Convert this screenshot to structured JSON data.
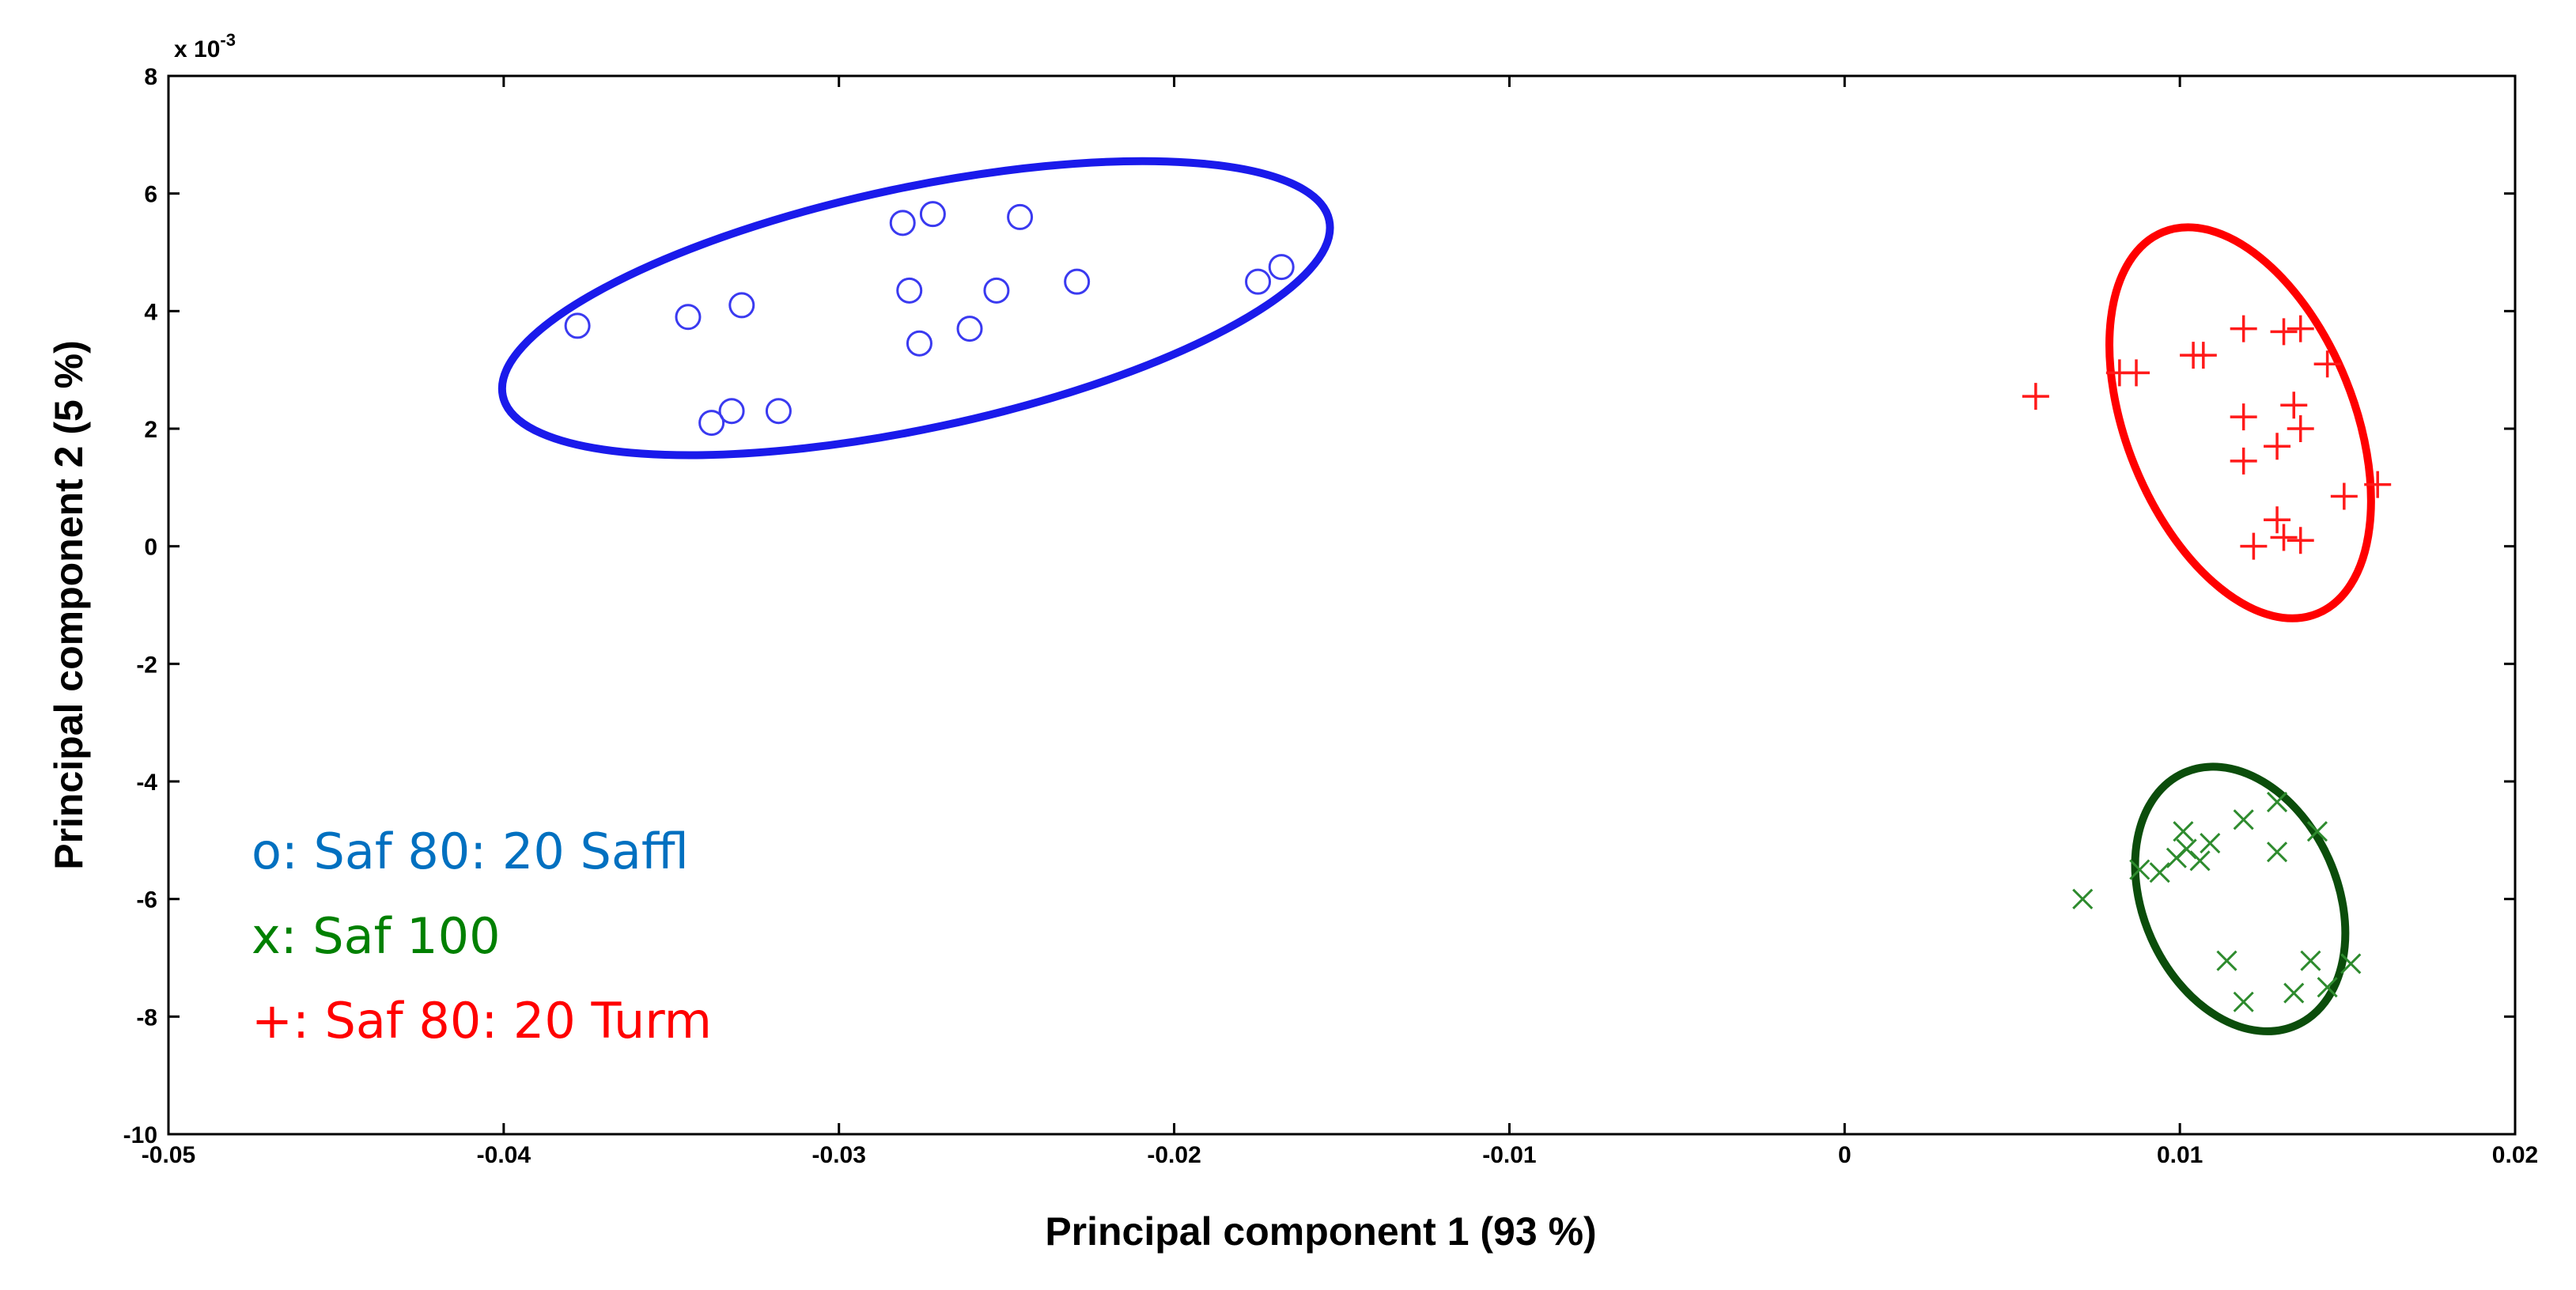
{
  "chart_data": {
    "type": "scatter",
    "xlabel": "Principal component 1 (93 %)",
    "ylabel": "Principal component 2 (5 %)",
    "y_multiplier_label": "x 10",
    "y_multiplier_exponent": "-3",
    "xlim": [
      -0.05,
      0.02
    ],
    "ylim": [
      -10,
      8
    ],
    "grid": false,
    "legend_placement": "bottom-left",
    "x_ticks": [
      {
        "value": -0.05,
        "label": "-0.05"
      },
      {
        "value": -0.04,
        "label": "-0.04"
      },
      {
        "value": -0.03,
        "label": "-0.03"
      },
      {
        "value": -0.02,
        "label": "-0.02"
      },
      {
        "value": -0.01,
        "label": "-0.01"
      },
      {
        "value": 0,
        "label": "0"
      },
      {
        "value": 0.01,
        "label": "0.01"
      },
      {
        "value": 0.02,
        "label": "0.02"
      }
    ],
    "y_ticks": [
      {
        "value": 8,
        "label": "8"
      },
      {
        "value": 6,
        "label": "6"
      },
      {
        "value": 4,
        "label": "4"
      },
      {
        "value": 2,
        "label": "2"
      },
      {
        "value": 0,
        "label": "0"
      },
      {
        "value": -2,
        "label": "-2"
      },
      {
        "value": -4,
        "label": "-4"
      },
      {
        "value": -6,
        "label": "-6"
      },
      {
        "value": -8,
        "label": "-8"
      },
      {
        "value": -10,
        "label": "-10"
      }
    ],
    "series": [
      {
        "key": "saffl",
        "name": "o: Saf 80: 20 Saffl",
        "marker": "circle",
        "color": "#3a3af0",
        "legend_color": "#0070c0",
        "ellipse_color": "#1a1aeb",
        "ellipse": {
          "cx": -0.0277,
          "cy": 4.05,
          "rx": 0.0126,
          "ry": 2.05,
          "angle_deg": -12
        },
        "points": [
          [
            -0.0378,
            3.75
          ],
          [
            -0.0345,
            3.9
          ],
          [
            -0.0329,
            4.1
          ],
          [
            -0.0338,
            2.1
          ],
          [
            -0.0332,
            2.3
          ],
          [
            -0.0318,
            2.3
          ],
          [
            -0.0281,
            5.5
          ],
          [
            -0.0272,
            5.65
          ],
          [
            -0.0246,
            5.6
          ],
          [
            -0.0279,
            4.35
          ],
          [
            -0.0276,
            3.45
          ],
          [
            -0.0261,
            3.7
          ],
          [
            -0.0253,
            4.35
          ],
          [
            -0.0229,
            4.5
          ],
          [
            -0.0175,
            4.5
          ],
          [
            -0.0168,
            4.75
          ]
        ]
      },
      {
        "key": "saf100",
        "name": "x: Saf 100",
        "marker": "x",
        "color": "#2e8b2e",
        "legend_color": "#008000",
        "ellipse_color": "#0b4d0b",
        "ellipse": {
          "cx": 0.0118,
          "cy": -6.0,
          "rx": 0.0029,
          "ry": 2.35,
          "angle_deg": -24
        },
        "points": [
          [
            0.0071,
            -6.0
          ],
          [
            0.0088,
            -5.5
          ],
          [
            0.0094,
            -5.55
          ],
          [
            0.0099,
            -5.3
          ],
          [
            0.0101,
            -4.85
          ],
          [
            0.0102,
            -5.15
          ],
          [
            0.0106,
            -5.35
          ],
          [
            0.0109,
            -5.05
          ],
          [
            0.0119,
            -4.65
          ],
          [
            0.0129,
            -4.35
          ],
          [
            0.0129,
            -5.2
          ],
          [
            0.0141,
            -4.85
          ],
          [
            0.0114,
            -7.05
          ],
          [
            0.0119,
            -7.75
          ],
          [
            0.0134,
            -7.6
          ],
          [
            0.0139,
            -7.05
          ],
          [
            0.0144,
            -7.5
          ],
          [
            0.0151,
            -7.1
          ]
        ]
      },
      {
        "key": "turm",
        "name": "+: Saf 80: 20 Turm",
        "marker": "plus",
        "color": "#ff1a1a",
        "legend_color": "#ff0000",
        "ellipse_color": "#ff0000",
        "ellipse": {
          "cx": 0.0118,
          "cy": 2.1,
          "rx": 0.0034,
          "ry": 3.5,
          "angle_deg": -22
        },
        "points": [
          [
            0.0057,
            2.55
          ],
          [
            0.0082,
            2.95
          ],
          [
            0.0087,
            2.95
          ],
          [
            0.0104,
            3.25
          ],
          [
            0.0107,
            3.25
          ],
          [
            0.0119,
            3.7
          ],
          [
            0.0131,
            3.65
          ],
          [
            0.0136,
            3.7
          ],
          [
            0.0144,
            3.1
          ],
          [
            0.0119,
            2.2
          ],
          [
            0.0134,
            2.4
          ],
          [
            0.0136,
            2.0
          ],
          [
            0.0119,
            1.45
          ],
          [
            0.0129,
            1.7
          ],
          [
            0.0149,
            0.85
          ],
          [
            0.0159,
            1.05
          ],
          [
            0.0129,
            0.45
          ],
          [
            0.0131,
            0.15
          ],
          [
            0.0136,
            0.1
          ],
          [
            0.0122,
            0.0
          ]
        ]
      }
    ]
  }
}
